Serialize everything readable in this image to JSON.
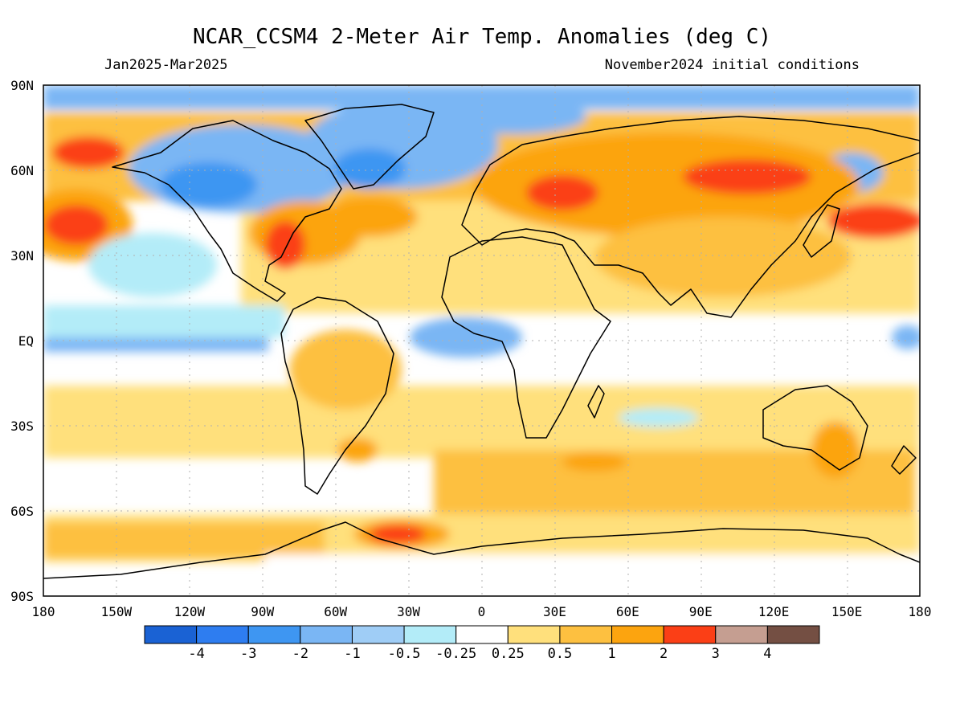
{
  "title": "NCAR_CCSM4 2-Meter Air Temp. Anomalies (deg C)",
  "subtitle_left": "Jan2025-Mar2025",
  "subtitle_right": "November2024 initial conditions",
  "axes": {
    "lat_labels": [
      "90N",
      "60N",
      "30N",
      "EQ",
      "30S",
      "60S",
      "90S"
    ],
    "lon_labels": [
      "180",
      "150W",
      "120W",
      "90W",
      "60W",
      "30W",
      "0",
      "30E",
      "60E",
      "90E",
      "120E",
      "150E",
      "180"
    ]
  },
  "colorbar": {
    "bins": [
      {
        "color": "#1a62d4"
      },
      {
        "color": "#2e7df0"
      },
      {
        "color": "#3e96f2"
      },
      {
        "color": "#7ab6f4"
      },
      {
        "color": "#9fcdf6"
      },
      {
        "color": "#b3ecf8"
      },
      {
        "color": "#ffffff"
      },
      {
        "color": "#ffe07c"
      },
      {
        "color": "#fdc040"
      },
      {
        "color": "#fca40f"
      },
      {
        "color": "#fb3f16"
      },
      {
        "color": "#c59e91"
      },
      {
        "color": "#744f43"
      }
    ],
    "tick_labels": [
      "-4",
      "-3",
      "-2",
      "-1",
      "-0.5",
      "-0.25",
      "0.25",
      "0.5",
      "1",
      "2",
      "3",
      "4"
    ]
  },
  "colors": {
    "land_outline": "#000000",
    "grid": "#b0b0b0",
    "background": "#ffffff"
  }
}
